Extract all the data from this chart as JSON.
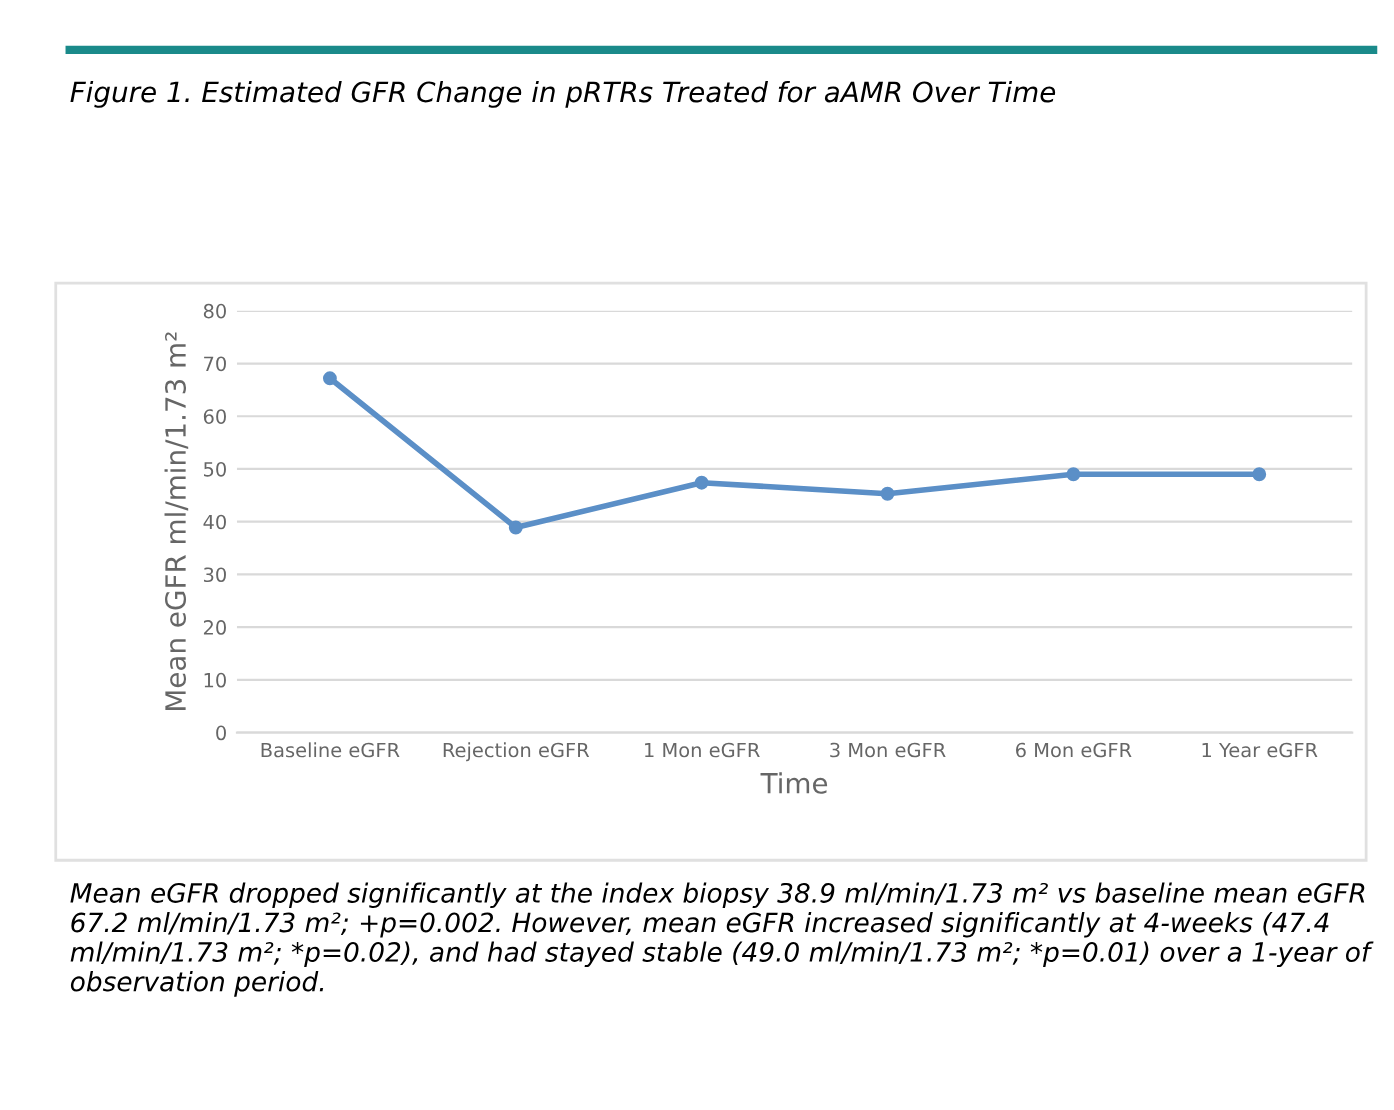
{
  "chart_data": {
    "type": "line",
    "title": "Figure 1. Estimated GFR Change in pRTRs Treated for aAMR Over Time",
    "xlabel": "Time",
    "ylabel": "Mean eGFR ml/min/1.73 m²",
    "categories": [
      "Baseline eGFR",
      "Rejection eGFR",
      "1 Mon eGFR",
      "3 Mon eGFR",
      "6 Mon eGFR",
      "1 Year eGFR"
    ],
    "series": [
      {
        "color": "#5b8fc7",
        "values": [
          67.2,
          38.9,
          47.4,
          45.3,
          49.0,
          49.0
        ]
      }
    ],
    "ylim": [
      0,
      80
    ],
    "yticks": [
      0,
      10,
      20,
      30,
      40,
      50,
      60,
      70,
      80
    ],
    "grid": "y",
    "marker": "circle",
    "line_style": "solid",
    "annotations": [
      "Mean eGFR dropped significantly at the index biopsy 38.9 ml/min/1.73 m² vs baseline mean eGFR 67.2 ml/min/1.73 m²; +p=0.002. However, mean eGFR increased significantly at 4-weeks (47.4 ml/min/1.73 m²; *p=0.02), and had stayed stable (49.0 ml/min/1.73 m²; *p=0.01) over a 1-year of observation period."
    ]
  }
}
